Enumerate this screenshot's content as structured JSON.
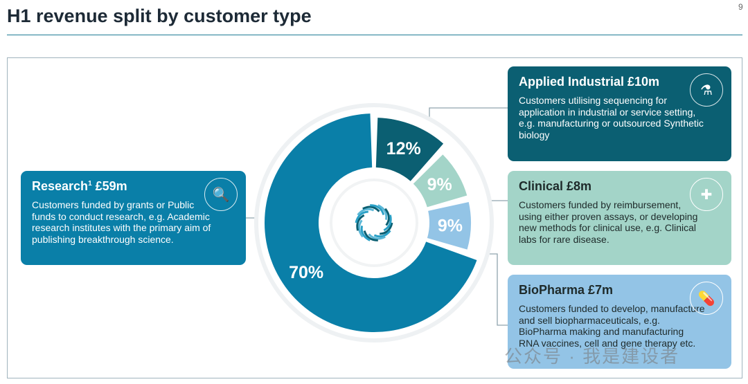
{
  "title": "H1 revenue split by customer type",
  "page_number": "9",
  "chart_data": {
    "type": "pie",
    "variant": "donut",
    "categories": [
      "Applied Industrial",
      "Clinical",
      "BioPharma",
      "Research"
    ],
    "values": [
      12,
      9,
      9,
      70
    ],
    "labels": [
      "12%",
      "9%",
      "9%",
      "70%"
    ],
    "colors": [
      "#0b5f72",
      "#a3d4c8",
      "#93c4e6",
      "#0a7fa8"
    ]
  },
  "boxes": {
    "research": {
      "title": "Research",
      "sup": "1",
      "amount": " £59m",
      "text": "Customers funded by grants or Public funds to conduct research, e.g. Academic research institutes with the primary aim of publishing breakthrough science.",
      "icon": "magnifier-chart-icon"
    },
    "applied": {
      "title": "Applied Industrial £10m",
      "text": "Customers utilising sequencing for application in industrial or service setting, e.g. manufacturing or outsourced Synthetic biology",
      "icon": "flask-plant-icon"
    },
    "clinical": {
      "title": "Clinical £8m",
      "text": "Customers funded by reimbursement, using either proven assays, or developing new methods for clinical use, e.g. Clinical labs for rare disease.",
      "icon": "medical-kit-icon"
    },
    "biopharma": {
      "title": "BioPharma £7m",
      "text": "Customers funded to develop, manufacture and sell biopharmaceuticals, e.g. BioPharma making and manufacturing RNA vaccines, cell and gene therapy etc.",
      "icon": "pill-icon"
    }
  },
  "watermark": "公众号 · 我是建设者"
}
